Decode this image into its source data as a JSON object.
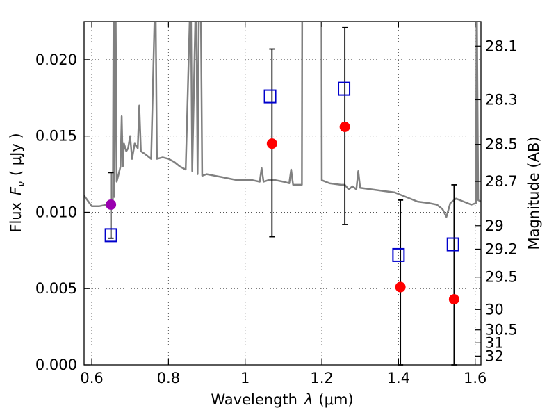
{
  "chart_data": {
    "type": "scatter",
    "xlabel_prefix": "Wavelength",
    "xlabel_symbol": "λ",
    "xlabel_unit": "(μm)",
    "ylabel_prefix": "Flux",
    "ylabel_symbol": "F",
    "ylabel_subscript": "ν",
    "ylabel_unit": "( μJy )",
    "y2label": "Magnitude (AB)",
    "xlim": [
      0.58,
      1.615
    ],
    "ylim": [
      0.0,
      0.0225
    ],
    "grid": true,
    "x_ticks": [
      0.6,
      0.8,
      1.0,
      1.2,
      1.4,
      1.6
    ],
    "x_tick_labels": [
      "0.6",
      "0.8",
      "1",
      "1.2",
      "1.4",
      "1.6"
    ],
    "y_ticks": [
      0.0,
      0.005,
      0.01,
      0.015,
      0.02
    ],
    "y_tick_labels": [
      "0.000",
      "0.005",
      "0.010",
      "0.015",
      "0.020"
    ],
    "y2_ticks": [
      28.1,
      28.3,
      28.5,
      28.7,
      29,
      29.2,
      29.5,
      30,
      30.5,
      31,
      32
    ],
    "y2_tick_labels": [
      "28.1",
      "28.3",
      "28.5",
      "28.7",
      "29",
      "29.2",
      "29.5",
      "30",
      "30.5",
      "31",
      "32"
    ],
    "colors": {
      "model": "#808080",
      "observed": "#ff0000",
      "observed_optical": "#9a00b0",
      "predicted": "#0000cc",
      "errorbar": "#000000",
      "grid": "#555555"
    },
    "observed": [
      {
        "x": 0.65,
        "y": 0.0105,
        "err_low": 0.0083,
        "err_high": 0.0126,
        "color_key": "observed_optical"
      },
      {
        "x": 1.07,
        "y": 0.0145,
        "err_low": 0.0084,
        "err_high": 0.0207,
        "color_key": "observed"
      },
      {
        "x": 1.26,
        "y": 0.0156,
        "err_low": 0.0092,
        "err_high": 0.0221,
        "color_key": "observed"
      },
      {
        "x": 1.405,
        "y": 0.0051,
        "err_low": 0.0,
        "err_high": 0.0108,
        "color_key": "observed"
      },
      {
        "x": 1.545,
        "y": 0.0043,
        "err_low": 0.0,
        "err_high": 0.0118,
        "color_key": "observed"
      }
    ],
    "predicted": [
      {
        "x": 0.65,
        "y": 0.0085
      },
      {
        "x": 1.065,
        "y": 0.0176
      },
      {
        "x": 1.258,
        "y": 0.0181
      },
      {
        "x": 1.4,
        "y": 0.0072
      },
      {
        "x": 1.542,
        "y": 0.0079
      }
    ],
    "model_spectrum": [
      [
        0.58,
        0.0111
      ],
      [
        0.6,
        0.0104
      ],
      [
        0.62,
        0.0104
      ],
      [
        0.64,
        0.0105
      ],
      [
        0.648,
        0.0106
      ],
      [
        0.655,
        0.0107
      ],
      [
        0.657,
        0.025
      ],
      [
        0.659,
        0.011
      ],
      [
        0.662,
        0.025
      ],
      [
        0.665,
        0.012
      ],
      [
        0.67,
        0.0125
      ],
      [
        0.675,
        0.013
      ],
      [
        0.678,
        0.0163
      ],
      [
        0.681,
        0.013
      ],
      [
        0.684,
        0.0145
      ],
      [
        0.69,
        0.014
      ],
      [
        0.695,
        0.0142
      ],
      [
        0.7,
        0.015
      ],
      [
        0.705,
        0.0135
      ],
      [
        0.712,
        0.0145
      ],
      [
        0.72,
        0.0142
      ],
      [
        0.724,
        0.017
      ],
      [
        0.728,
        0.014
      ],
      [
        0.74,
        0.0138
      ],
      [
        0.755,
        0.0135
      ],
      [
        0.766,
        0.025
      ],
      [
        0.77,
        0.0135
      ],
      [
        0.785,
        0.0136
      ],
      [
        0.8,
        0.0135
      ],
      [
        0.815,
        0.0133
      ],
      [
        0.83,
        0.013
      ],
      [
        0.845,
        0.0128
      ],
      [
        0.858,
        0.025
      ],
      [
        0.862,
        0.0127
      ],
      [
        0.872,
        0.025
      ],
      [
        0.876,
        0.0125
      ],
      [
        0.88,
        0.025
      ],
      [
        0.884,
        0.025
      ],
      [
        0.888,
        0.0124
      ],
      [
        0.9,
        0.0125
      ],
      [
        0.92,
        0.0124
      ],
      [
        0.94,
        0.0123
      ],
      [
        0.96,
        0.0122
      ],
      [
        0.98,
        0.0121
      ],
      [
        1.0,
        0.0121
      ],
      [
        1.02,
        0.0121
      ],
      [
        1.038,
        0.012
      ],
      [
        1.043,
        0.0129
      ],
      [
        1.048,
        0.012
      ],
      [
        1.06,
        0.0121
      ],
      [
        1.08,
        0.0121
      ],
      [
        1.1,
        0.012
      ],
      [
        1.115,
        0.0119
      ],
      [
        1.12,
        0.0128
      ],
      [
        1.125,
        0.0118
      ],
      [
        1.13,
        0.0118
      ],
      [
        1.148,
        0.0118
      ],
      [
        1.149,
        0.025
      ],
      [
        1.199,
        0.025
      ],
      [
        1.2,
        0.0121
      ],
      [
        1.22,
        0.0119
      ],
      [
        1.25,
        0.0118
      ],
      [
        1.26,
        0.0118
      ],
      [
        1.27,
        0.0115
      ],
      [
        1.28,
        0.0117
      ],
      [
        1.29,
        0.0115
      ],
      [
        1.295,
        0.0127
      ],
      [
        1.3,
        0.0116
      ],
      [
        1.33,
        0.0115
      ],
      [
        1.36,
        0.0114
      ],
      [
        1.39,
        0.0113
      ],
      [
        1.42,
        0.011
      ],
      [
        1.45,
        0.0107
      ],
      [
        1.48,
        0.0106
      ],
      [
        1.5,
        0.0105
      ],
      [
        1.515,
        0.0102
      ],
      [
        1.525,
        0.0097
      ],
      [
        1.535,
        0.0106
      ],
      [
        1.55,
        0.0109
      ],
      [
        1.57,
        0.0107
      ],
      [
        1.59,
        0.0105
      ],
      [
        1.602,
        0.0106
      ],
      [
        1.604,
        0.025
      ],
      [
        1.608,
        0.0108
      ],
      [
        1.615,
        0.0107
      ]
    ]
  }
}
